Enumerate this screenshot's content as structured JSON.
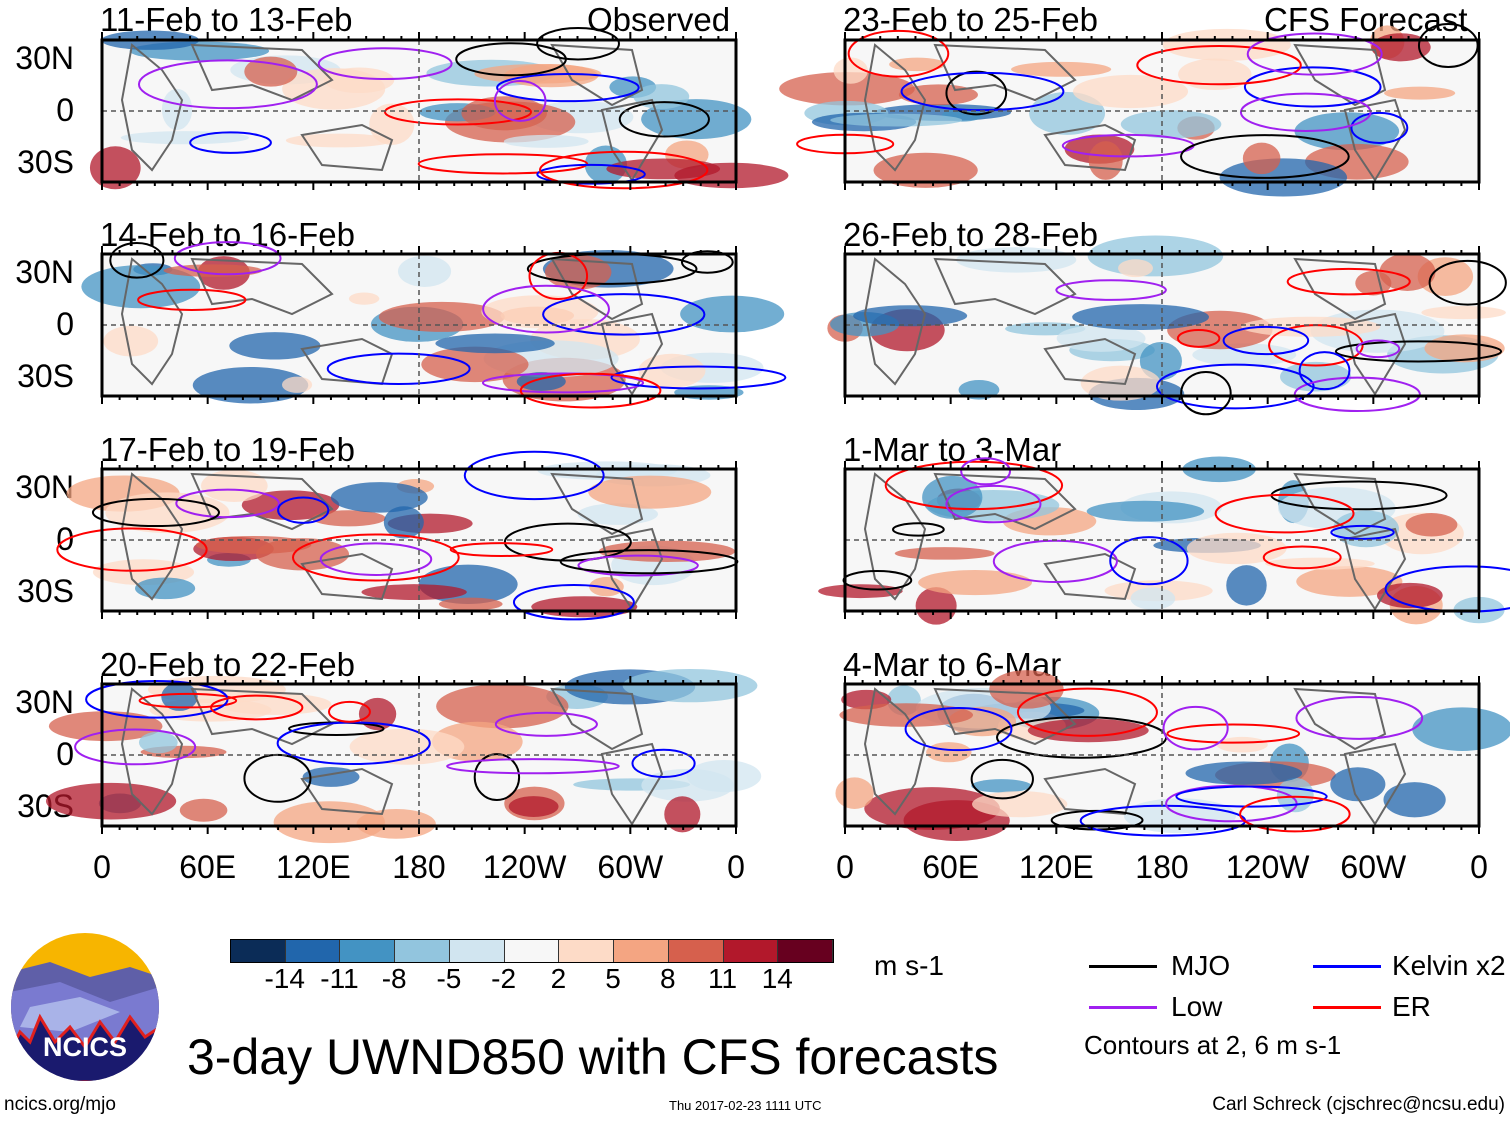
{
  "figure": {
    "title": "3-day UWND850 with CFS forecasts",
    "site": "ncics.org/mjo",
    "timestamp": "Thu 2017-02-23 1111 UTC",
    "author": "Carl Schreck (cjschrec@ncsu.edu)",
    "logo_text": "NCICS"
  },
  "columns": {
    "observed": "Observed",
    "forecast": "CFS Forecast"
  },
  "lat_labels": [
    "30N",
    "0",
    "30S"
  ],
  "lon_labels": [
    "0",
    "60E",
    "120E",
    "180",
    "120W",
    "60W",
    "0"
  ],
  "panels": {
    "left": [
      {
        "title": "11-Feb to 13-Feb"
      },
      {
        "title": "14-Feb to 16-Feb"
      },
      {
        "title": "17-Feb to 19-Feb"
      },
      {
        "title": "20-Feb to 22-Feb"
      }
    ],
    "right": [
      {
        "title": "23-Feb to 25-Feb"
      },
      {
        "title": "26-Feb to 28-Feb"
      },
      {
        "title": "1-Mar to 3-Mar"
      },
      {
        "title": "4-Mar to 6-Mar"
      }
    ]
  },
  "colorbar": {
    "units": "m s-1",
    "levels": [
      "-14",
      "-11",
      "-8",
      "-5",
      "-2",
      "2",
      "5",
      "8",
      "11",
      "14"
    ],
    "colors": [
      "#0b2c57",
      "#2166ac",
      "#4393c3",
      "#92c5de",
      "#d1e5f0",
      "#f7f7f7",
      "#fddbc7",
      "#f4a582",
      "#d6604d",
      "#b2182b",
      "#67001f"
    ]
  },
  "legend": {
    "items": [
      {
        "label": "MJO",
        "color": "#000000"
      },
      {
        "label": "Kelvin x2",
        "color": "#0000ff"
      },
      {
        "label": "Low",
        "color": "#a020f0"
      },
      {
        "label": "ER",
        "color": "#ff0000"
      }
    ],
    "note": "Contours at 2, 6 m s-1"
  }
}
